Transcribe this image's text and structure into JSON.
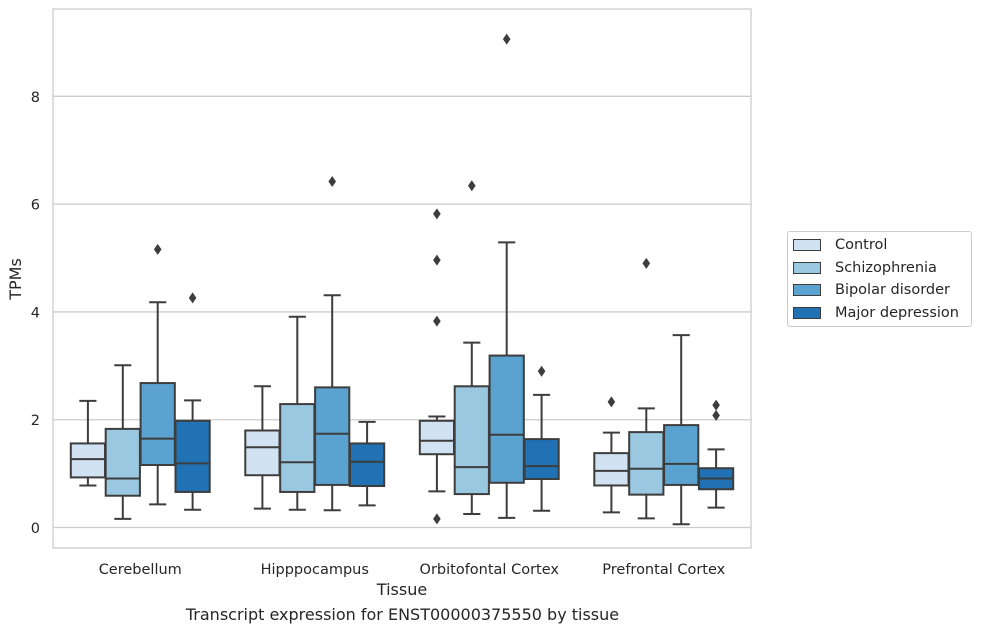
{
  "chart_data": {
    "type": "box",
    "title": "Transcript expression for ENST00000375550 by tissue",
    "xlabel": "Tissue",
    "ylabel": "TPMs",
    "ylim": [
      -0.38,
      9.62
    ],
    "yticks": [
      0,
      2,
      4,
      6,
      8
    ],
    "grid": true,
    "legend_position": "right",
    "categories": [
      "Cerebellum",
      "Hipppocampus",
      "Orbitofontal Cortex",
      "Prefrontal Cortex"
    ],
    "series": [
      {
        "name": "Control",
        "color": "#d1e2f2",
        "boxes": [
          {
            "whisker_low": 0.78,
            "q1": 0.93,
            "median": 1.27,
            "q3": 1.56,
            "whisker_high": 2.35,
            "outliers": []
          },
          {
            "whisker_low": 0.35,
            "q1": 0.97,
            "median": 1.49,
            "q3": 1.8,
            "whisker_high": 2.62,
            "outliers": []
          },
          {
            "whisker_low": 0.67,
            "q1": 1.36,
            "median": 1.61,
            "q3": 1.98,
            "whisker_high": 2.06,
            "outliers": [
              0.16,
              3.83,
              4.96,
              5.82
            ]
          },
          {
            "whisker_low": 0.28,
            "q1": 0.78,
            "median": 1.05,
            "q3": 1.38,
            "whisker_high": 1.76,
            "outliers": [
              2.33
            ]
          }
        ]
      },
      {
        "name": "Schizophrenia",
        "color": "#9ac8e0",
        "boxes": [
          {
            "whisker_low": 0.16,
            "q1": 0.59,
            "median": 0.91,
            "q3": 1.83,
            "whisker_high": 3.01,
            "outliers": []
          },
          {
            "whisker_low": 0.33,
            "q1": 0.66,
            "median": 1.21,
            "q3": 2.29,
            "whisker_high": 3.91,
            "outliers": []
          },
          {
            "whisker_low": 0.25,
            "q1": 0.62,
            "median": 1.12,
            "q3": 2.62,
            "whisker_high": 3.43,
            "outliers": [
              6.34
            ]
          },
          {
            "whisker_low": 0.17,
            "q1": 0.61,
            "median": 1.09,
            "q3": 1.77,
            "whisker_high": 2.21,
            "outliers": [
              4.9
            ]
          }
        ]
      },
      {
        "name": "Bipolar disorder",
        "color": "#5aa2cf",
        "boxes": [
          {
            "whisker_low": 0.43,
            "q1": 1.16,
            "median": 1.65,
            "q3": 2.68,
            "whisker_high": 4.18,
            "outliers": [
              5.16
            ]
          },
          {
            "whisker_low": 0.32,
            "q1": 0.79,
            "median": 1.74,
            "q3": 2.6,
            "whisker_high": 4.31,
            "outliers": [
              6.42
            ]
          },
          {
            "whisker_low": 0.18,
            "q1": 0.83,
            "median": 1.72,
            "q3": 3.19,
            "whisker_high": 5.29,
            "outliers": [
              9.06
            ]
          },
          {
            "whisker_low": 0.06,
            "q1": 0.79,
            "median": 1.18,
            "q3": 1.9,
            "whisker_high": 3.57,
            "outliers": []
          }
        ]
      },
      {
        "name": "Major depression",
        "color": "#2171b5",
        "boxes": [
          {
            "whisker_low": 0.33,
            "q1": 0.66,
            "median": 1.19,
            "q3": 1.98,
            "whisker_high": 2.36,
            "outliers": [
              4.26
            ]
          },
          {
            "whisker_low": 0.41,
            "q1": 0.77,
            "median": 1.22,
            "q3": 1.56,
            "whisker_high": 1.96,
            "outliers": []
          },
          {
            "whisker_low": 0.31,
            "q1": 0.9,
            "median": 1.14,
            "q3": 1.64,
            "whisker_high": 2.46,
            "outliers": [
              2.9
            ]
          },
          {
            "whisker_low": 0.37,
            "q1": 0.71,
            "median": 0.91,
            "q3": 1.1,
            "whisker_high": 1.45,
            "outliers": [
              2.08,
              2.27
            ]
          }
        ]
      }
    ]
  }
}
